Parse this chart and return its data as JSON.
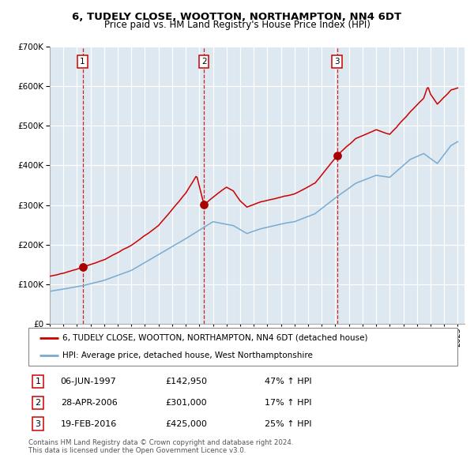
{
  "title": "6, TUDELY CLOSE, WOOTTON, NORTHAMPTON, NN4 6DT",
  "subtitle": "Price paid vs. HM Land Registry's House Price Index (HPI)",
  "sale1_price": 142950,
  "sale1_label": "1",
  "sale1_hpi_change": "47% ↑ HPI",
  "sale1_date_str": "06-JUN-1997",
  "sale1_year_float": 1997.417,
  "sale2_price": 301000,
  "sale2_label": "2",
  "sale2_hpi_change": "17% ↑ HPI",
  "sale2_date_str": "28-APR-2006",
  "sale2_year_float": 2006.333,
  "sale3_price": 425000,
  "sale3_label": "3",
  "sale3_hpi_change": "25% ↑ HPI",
  "sale3_date_str": "19-FEB-2016",
  "sale3_year_float": 2016.125,
  "hpi_line_color": "#7aabcf",
  "price_line_color": "#cc0000",
  "dot_color": "#aa0000",
  "vline_color": "#cc0000",
  "bg_color": "#dde8f0",
  "grid_color": "#ffffff",
  "legend_label_price": "6, TUDELY CLOSE, WOOTTON, NORTHAMPTON, NN4 6DT (detached house)",
  "legend_label_hpi": "HPI: Average price, detached house, West Northamptonshire",
  "footer": "Contains HM Land Registry data © Crown copyright and database right 2024.\nThis data is licensed under the Open Government Licence v3.0.",
  "ylim_max": 700000,
  "x_start_year": 1995,
  "x_end_year": 2025,
  "hpi_key_years": [
    1995.0,
    1996.0,
    1997.5,
    1999.0,
    2001.0,
    2003.0,
    2005.0,
    2007.0,
    2008.5,
    2009.5,
    2010.5,
    2012.0,
    2013.0,
    2014.5,
    2016.0,
    2017.5,
    2019.0,
    2020.0,
    2021.5,
    2022.5,
    2023.5,
    2024.5,
    2025.0
  ],
  "hpi_key_vals": [
    82000,
    88000,
    97000,
    110000,
    135000,
    175000,
    215000,
    258000,
    248000,
    228000,
    240000,
    252000,
    258000,
    278000,
    318000,
    355000,
    375000,
    370000,
    415000,
    430000,
    405000,
    450000,
    460000
  ],
  "price_key_years": [
    1995.0,
    1996.0,
    1997.417,
    1997.417,
    1999.0,
    2001.0,
    2003.0,
    2005.0,
    2005.8,
    2006.333,
    2006.333,
    2007.0,
    2008.0,
    2008.5,
    2009.0,
    2009.5,
    2010.5,
    2012.0,
    2013.0,
    2014.5,
    2016.125,
    2016.125,
    2017.5,
    2019.0,
    2020.0,
    2021.5,
    2022.5,
    2022.8,
    2023.0,
    2023.5,
    2024.5,
    2025.0
  ],
  "price_key_vals": [
    120000,
    128000,
    142950,
    142950,
    162000,
    198000,
    248000,
    330000,
    375000,
    301000,
    301000,
    320000,
    345000,
    335000,
    310000,
    295000,
    308000,
    320000,
    328000,
    355000,
    425000,
    425000,
    468000,
    490000,
    478000,
    535000,
    570000,
    600000,
    580000,
    555000,
    590000,
    595000
  ]
}
